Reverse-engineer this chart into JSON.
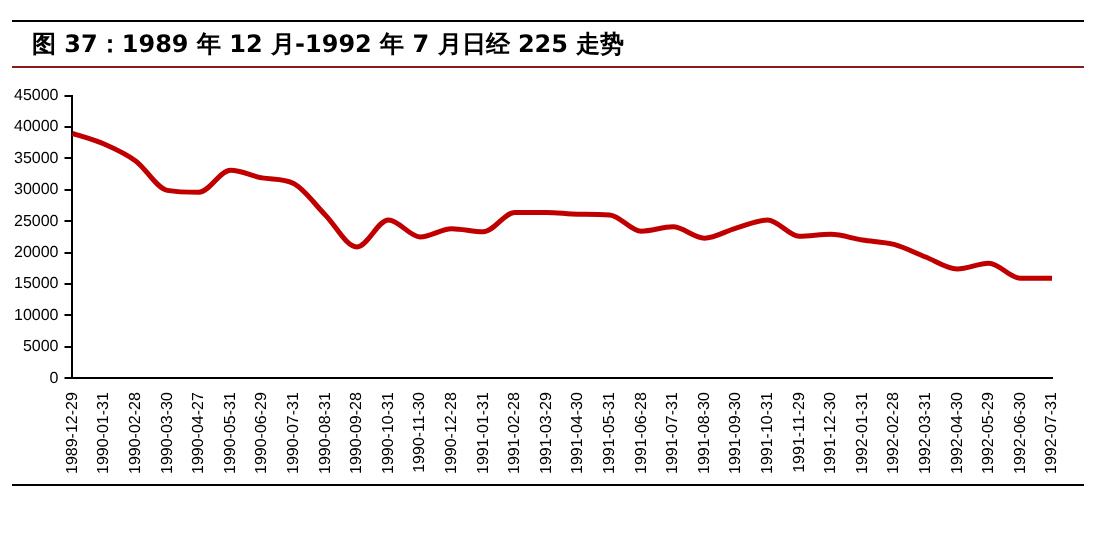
{
  "chart_data": {
    "type": "line",
    "title": "图 37：1989 年 12 月-1992 年 7 月日经 225 走势",
    "categories": [
      "1989-12-29",
      "1990-01-31",
      "1990-02-28",
      "1990-03-30",
      "1990-04-27",
      "1990-05-31",
      "1990-06-29",
      "1990-07-31",
      "1990-08-31",
      "1990-09-28",
      "1990-10-31",
      "1990-11-30",
      "1990-12-28",
      "1991-01-31",
      "1991-02-28",
      "1991-03-29",
      "1991-04-30",
      "1991-05-31",
      "1991-06-28",
      "1991-07-31",
      "1991-08-30",
      "1991-09-30",
      "1991-10-31",
      "1991-11-29",
      "1991-12-30",
      "1992-01-31",
      "1992-02-28",
      "1992-03-31",
      "1992-04-30",
      "1992-05-29",
      "1992-06-30",
      "1992-07-31"
    ],
    "series": [
      {
        "color": "#c00000",
        "values": [
          39000,
          37300,
          34600,
          29900,
          29600,
          33100,
          31900,
          31000,
          26000,
          20900,
          25200,
          22500,
          23800,
          23300,
          26400,
          26400,
          26100,
          26000,
          23400,
          24100,
          22300,
          23900,
          25200,
          22600,
          22900,
          22000,
          21300,
          19300,
          17400,
          18300,
          15900,
          15900
        ]
      }
    ],
    "ylim": [
      0,
      45000
    ],
    "yticks": [
      0,
      5000,
      10000,
      15000,
      20000,
      25000,
      30000,
      35000,
      40000,
      45000
    ],
    "grid": false,
    "legend": false,
    "marker": "none",
    "line_style": "solid"
  }
}
